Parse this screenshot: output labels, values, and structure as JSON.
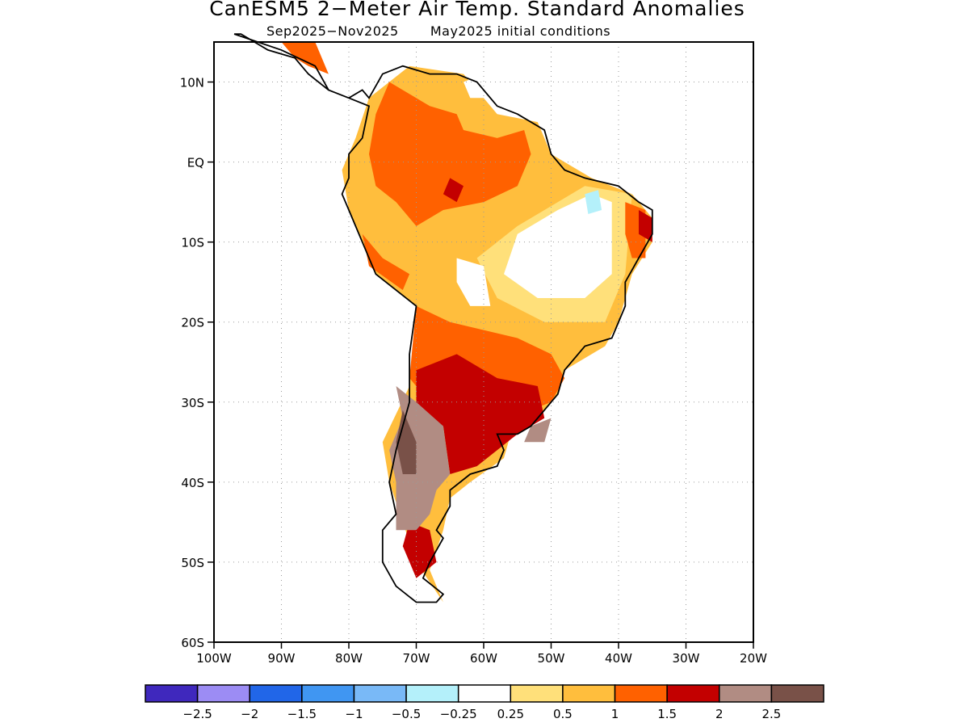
{
  "title": "CanESM5 2−Meter Air Temp. Standard Anomalies",
  "subtitle": "Sep2025−Nov2025       May2025 initial conditions",
  "map": {
    "extent": {
      "lon_min": -100,
      "lon_max": -20,
      "lat_min": -60,
      "lat_max": 15
    },
    "grid": "dotted",
    "lat_ticks": [
      {
        "lat": 10,
        "label": "10N"
      },
      {
        "lat": 0,
        "label": "EQ"
      },
      {
        "lat": -10,
        "label": "10S"
      },
      {
        "lat": -20,
        "label": "20S"
      },
      {
        "lat": -30,
        "label": "30S"
      },
      {
        "lat": -40,
        "label": "40S"
      },
      {
        "lat": -50,
        "label": "50S"
      },
      {
        "lat": -60,
        "label": "60S"
      }
    ],
    "lon_ticks": [
      {
        "lon": -100,
        "label": "100W"
      },
      {
        "lon": -90,
        "label": "90W"
      },
      {
        "lon": -80,
        "label": "80W"
      },
      {
        "lon": -70,
        "label": "70W"
      },
      {
        "lon": -60,
        "label": "60W"
      },
      {
        "lon": -50,
        "label": "50W"
      },
      {
        "lon": -40,
        "label": "40W"
      },
      {
        "lon": -30,
        "label": "30W"
      },
      {
        "lon": -20,
        "label": "20W"
      }
    ],
    "anomaly_regions": [
      {
        "category": "0.5 to 1",
        "points": [
          [
            -66,
            -55
          ],
          [
            -70,
            -50
          ],
          [
            -72,
            -45
          ],
          [
            -74,
            -40
          ],
          [
            -75,
            -35
          ],
          [
            -71,
            -28
          ],
          [
            -70,
            -18
          ],
          [
            -76,
            -14
          ],
          [
            -80,
            -6
          ],
          [
            -81,
            -1
          ],
          [
            -79,
            3
          ],
          [
            -77,
            8
          ],
          [
            -71,
            12
          ],
          [
            -63,
            11
          ],
          [
            -58,
            6
          ],
          [
            -52,
            5
          ],
          [
            -50,
            1
          ],
          [
            -44,
            -2
          ],
          [
            -38,
            -4
          ],
          [
            -35,
            -7
          ],
          [
            -35,
            -10
          ],
          [
            -38,
            -14
          ],
          [
            -40,
            -20
          ],
          [
            -42,
            -23
          ],
          [
            -48,
            -26
          ],
          [
            -49,
            -29
          ],
          [
            -52,
            -32
          ],
          [
            -56,
            -34
          ],
          [
            -57,
            -37
          ],
          [
            -62,
            -40
          ],
          [
            -65,
            -42
          ],
          [
            -66,
            -46
          ],
          [
            -68,
            -51
          ]
        ]
      },
      {
        "category": "0.25 to 0.5",
        "points": [
          [
            -45,
            -3
          ],
          [
            -38,
            -4
          ],
          [
            -39,
            -14
          ],
          [
            -42,
            -20
          ],
          [
            -51,
            -20
          ],
          [
            -58,
            -17
          ],
          [
            -61,
            -12
          ],
          [
            -55,
            -8
          ]
        ]
      },
      {
        "category": "-0.25 to 0.25",
        "points": [
          [
            -44,
            -4
          ],
          [
            -41,
            -5
          ],
          [
            -41,
            -14
          ],
          [
            -45,
            -17
          ],
          [
            -52,
            -17
          ],
          [
            -57,
            -14
          ],
          [
            -55,
            -9
          ],
          [
            -49,
            -6
          ]
        ]
      },
      {
        "category": "-0.25 to 0.25",
        "points": [
          [
            -64,
            -12
          ],
          [
            -60,
            -13
          ],
          [
            -59,
            -18
          ],
          [
            -62,
            -18
          ],
          [
            -64,
            -15
          ]
        ]
      },
      {
        "category": "-0.25 to 0.25",
        "points": [
          [
            -63,
            10
          ],
          [
            -60,
            11
          ],
          [
            -60,
            8
          ],
          [
            -62,
            8
          ]
        ]
      },
      {
        "category": "-0.5 to -0.25",
        "points": [
          [
            -45,
            -4
          ],
          [
            -43,
            -3.5
          ],
          [
            -42.5,
            -6
          ],
          [
            -44.5,
            -6.5
          ]
        ]
      },
      {
        "category": "1 to 1.5",
        "points": [
          [
            -74,
            10
          ],
          [
            -68,
            7
          ],
          [
            -64,
            6
          ],
          [
            -63,
            4
          ],
          [
            -58,
            3
          ],
          [
            -54,
            4
          ],
          [
            -53,
            1
          ],
          [
            -55,
            -3
          ],
          [
            -60,
            -5
          ],
          [
            -66,
            -6
          ],
          [
            -70,
            -8
          ],
          [
            -73,
            -5
          ],
          [
            -76,
            -3
          ],
          [
            -77,
            1
          ],
          [
            -76,
            6
          ]
        ]
      },
      {
        "category": "1 to 1.5",
        "points": [
          [
            -78,
            -9
          ],
          [
            -75,
            -12
          ],
          [
            -71,
            -14
          ],
          [
            -72,
            -16
          ],
          [
            -77,
            -13
          ]
        ]
      },
      {
        "category": "1 to 1.5",
        "points": [
          [
            -70,
            -18
          ],
          [
            -65,
            -20
          ],
          [
            -60,
            -21
          ],
          [
            -55,
            -22
          ],
          [
            -50,
            -24
          ],
          [
            -48,
            -27
          ],
          [
            -50,
            -30
          ],
          [
            -56,
            -32
          ],
          [
            -62,
            -31
          ],
          [
            -68,
            -30
          ],
          [
            -71,
            -27
          ]
        ]
      },
      {
        "category": "1 to 1.5",
        "points": [
          [
            -39,
            -5
          ],
          [
            -36,
            -6
          ],
          [
            -36,
            -12
          ],
          [
            -38,
            -12
          ],
          [
            -39,
            -9
          ]
        ]
      },
      {
        "category": "1 to 1.5",
        "points": [
          [
            -90,
            15
          ],
          [
            -85,
            15
          ],
          [
            -83,
            11
          ],
          [
            -86,
            12
          ],
          [
            -88,
            13
          ]
        ]
      },
      {
        "category": "1.5 to 2",
        "points": [
          [
            -70,
            -26
          ],
          [
            -64,
            -24
          ],
          [
            -58,
            -27
          ],
          [
            -52,
            -28
          ],
          [
            -51,
            -32
          ],
          [
            -55,
            -34
          ],
          [
            -58,
            -36
          ],
          [
            -61,
            -38
          ],
          [
            -65,
            -39
          ],
          [
            -66,
            -33
          ],
          [
            -70,
            -32
          ]
        ]
      },
      {
        "category": "1.5 to 2",
        "points": [
          [
            -71,
            -45
          ],
          [
            -68,
            -46
          ],
          [
            -67,
            -50
          ],
          [
            -70,
            -52
          ],
          [
            -72,
            -48
          ]
        ]
      },
      {
        "category": "1.5 to 2",
        "points": [
          [
            -65,
            -2
          ],
          [
            -63,
            -3
          ],
          [
            -64,
            -5
          ],
          [
            -66,
            -4
          ]
        ]
      },
      {
        "category": "1.5 to 2",
        "points": [
          [
            -37,
            -6
          ],
          [
            -35,
            -7
          ],
          [
            -35,
            -10
          ],
          [
            -37,
            -9
          ]
        ]
      },
      {
        "category": "2 to 2.5",
        "points": [
          [
            -73,
            -28
          ],
          [
            -70,
            -30
          ],
          [
            -66,
            -33
          ],
          [
            -65,
            -39
          ],
          [
            -67,
            -41
          ],
          [
            -68,
            -44
          ],
          [
            -70,
            -46
          ],
          [
            -73,
            -46
          ],
          [
            -73,
            -40
          ],
          [
            -74,
            -36
          ],
          [
            -72,
            -32
          ]
        ]
      },
      {
        "category": "2 to 2.5",
        "points": [
          [
            -53,
            -33
          ],
          [
            -50,
            -32
          ],
          [
            -51,
            -35
          ],
          [
            -54,
            -35
          ]
        ]
      },
      {
        "category": "> 2.5",
        "points": [
          [
            -72,
            -31
          ],
          [
            -70,
            -35
          ],
          [
            -70,
            -39
          ],
          [
            -72,
            -39
          ],
          [
            -73,
            -35
          ]
        ]
      }
    ],
    "coastline_outline": [
      [
        -97,
        16
      ],
      [
        -90,
        14
      ],
      [
        -85,
        12
      ],
      [
        -83,
        9
      ],
      [
        -80,
        8
      ],
      [
        -78,
        9
      ],
      [
        -77,
        8
      ],
      [
        -75,
        11
      ],
      [
        -72,
        12
      ],
      [
        -68,
        11
      ],
      [
        -64,
        11
      ],
      [
        -61,
        10
      ],
      [
        -58,
        7
      ],
      [
        -55,
        6
      ],
      [
        -51,
        4
      ],
      [
        -50,
        1
      ],
      [
        -48,
        -1
      ],
      [
        -45,
        -2
      ],
      [
        -40,
        -3
      ],
      [
        -37,
        -5
      ],
      [
        -35,
        -6
      ],
      [
        -35,
        -9
      ],
      [
        -37,
        -12
      ],
      [
        -39,
        -15
      ],
      [
        -39,
        -18
      ],
      [
        -41,
        -22
      ],
      [
        -45,
        -23
      ],
      [
        -48,
        -26
      ],
      [
        -49,
        -29
      ],
      [
        -51,
        -31
      ],
      [
        -53,
        -33
      ],
      [
        -55,
        -34
      ],
      [
        -58,
        -34
      ],
      [
        -57,
        -36
      ],
      [
        -58,
        -38
      ],
      [
        -62,
        -39
      ],
      [
        -65,
        -41
      ],
      [
        -65,
        -43
      ],
      [
        -67,
        -46
      ],
      [
        -66,
        -47
      ],
      [
        -68,
        -50
      ],
      [
        -69,
        -52
      ],
      [
        -66,
        -54
      ],
      [
        -67,
        -55
      ],
      [
        -70,
        -55
      ],
      [
        -73,
        -53
      ],
      [
        -75,
        -50
      ],
      [
        -75,
        -46
      ],
      [
        -73,
        -44
      ],
      [
        -74,
        -40
      ],
      [
        -73,
        -36
      ],
      [
        -71,
        -30
      ],
      [
        -71,
        -24
      ],
      [
        -70,
        -18
      ],
      [
        -76,
        -14
      ],
      [
        -78,
        -10
      ],
      [
        -80,
        -6
      ],
      [
        -81,
        -4
      ],
      [
        -80,
        -2
      ],
      [
        -80,
        1
      ],
      [
        -78,
        3
      ],
      [
        -77,
        7
      ],
      [
        -80,
        8
      ],
      [
        -83,
        9
      ],
      [
        -86,
        11
      ],
      [
        -88,
        13
      ],
      [
        -92,
        14
      ],
      [
        -96,
        16
      ]
    ]
  },
  "colorbar": {
    "colors": [
      "#3f28bd",
      "#9c8cf4",
      "#2166e8",
      "#4096f2",
      "#79b9f7",
      "#b4f0fa",
      "#ffffff",
      "#ffe07a",
      "#ffbe3d",
      "#ff6100",
      "#c30000",
      "#b18c83",
      "#795148"
    ],
    "tick_labels": [
      "−2.5",
      "−2",
      "−1.5",
      "−1",
      "−0.5",
      "−0.25",
      "0.25",
      "0.5",
      "1",
      "1.5",
      "2",
      "2.5"
    ]
  },
  "category_colors": {
    "-0.5 to -0.25": "#b4f0fa",
    "-0.25 to 0.25": "#ffffff",
    "0.25 to 0.5": "#ffe07a",
    "0.5 to 1": "#ffbe3d",
    "1 to 1.5": "#ff6100",
    "1.5 to 2": "#c30000",
    "2 to 2.5": "#b18c83",
    "> 2.5": "#795148"
  }
}
